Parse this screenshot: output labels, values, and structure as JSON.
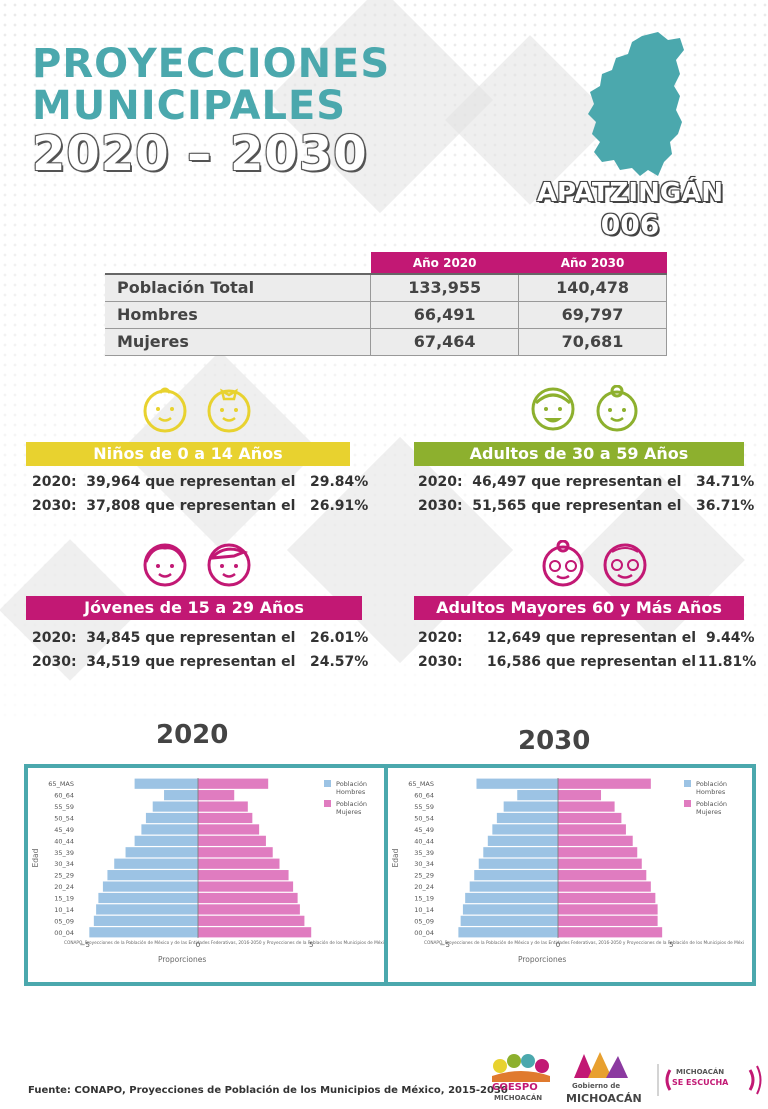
{
  "header": {
    "title_line1": "PROYECCIONES",
    "title_line2": "MUNICIPALES",
    "title_line3": "2020 – 2030",
    "municipality": "APATZINGÁN",
    "code": "006"
  },
  "population_table": {
    "col_2020": "Año 2020",
    "col_2030": "Año 2030",
    "rows": [
      {
        "label": "Población Total",
        "v2020": "133,955",
        "v2030": "140,478"
      },
      {
        "label": "Hombres",
        "v2020": "66,491",
        "v2030": "69,797"
      },
      {
        "label": "Mujeres",
        "v2020": "67,464",
        "v2030": "70,681"
      }
    ]
  },
  "groups": {
    "ninos": {
      "title": "Niños de 0 a 14 Años",
      "l2020": "2020:  39,964 que representan el",
      "p2020": "29.84%",
      "l2030": "2030:  37,808 que representan el",
      "p2030": "26.91%"
    },
    "adultos": {
      "title": "Adultos de 30 a 59 Años",
      "l2020": "2020:  46,497 que representan el",
      "p2020": "34.71%",
      "l2030": "2030:  51,565 que representan el",
      "p2030": "36.71%"
    },
    "jovenes": {
      "title": "Jóvenes de 15 a 29 Años",
      "l2020": "2020:  34,845 que representan el",
      "p2020": "26.01%",
      "l2030": "2030:  34,519 que representan el",
      "p2030": "24.57%"
    },
    "mayores": {
      "title": "Adultos Mayores  60 y Más Años",
      "l2020": "2020:     12,649 que representan el",
      "p2020": "9.44%",
      "l2030": "2030:     16,586 que representan el",
      "p2030": "11.81%"
    }
  },
  "colors": {
    "teal": "#4ba8ad",
    "magenta": "#c21874",
    "yellow": "#e8d22f",
    "green": "#8db02e",
    "hombres": "#9cc3e4",
    "mujeres": "#e07cc0"
  },
  "chart_data": [
    {
      "type": "bar",
      "orientation": "horizontal-population-pyramid",
      "title": "2020",
      "categories": [
        "00_04",
        "05_09",
        "10_14",
        "15_19",
        "20_24",
        "25_29",
        "30_34",
        "35_39",
        "40_44",
        "45_49",
        "50_54",
        "55_59",
        "60_64",
        "65_MAS"
      ],
      "series": [
        {
          "name": "Población Hombres",
          "values": [
            -4.8,
            -4.6,
            -4.5,
            -4.4,
            -4.2,
            -4.0,
            -3.7,
            -3.2,
            -2.8,
            -2.5,
            -2.3,
            -2.0,
            -1.5,
            -2.8
          ]
        },
        {
          "name": "Población Mujeres",
          "values": [
            5.0,
            4.7,
            4.5,
            4.4,
            4.2,
            4.0,
            3.6,
            3.3,
            3.0,
            2.7,
            2.4,
            2.2,
            1.6,
            3.1
          ]
        }
      ],
      "xlim": [
        -5,
        5
      ],
      "xticks": [
        "−5",
        "0",
        "5"
      ],
      "xlabel": "Proporciones",
      "ylabel": "Edad",
      "note": "CONAPO. Proyecciones de la Población de México y de las Entidades Federativas, 2016-2050 y Proyecciones de la Población de los Municipios de Méxi",
      "legend": "top-right"
    },
    {
      "type": "bar",
      "orientation": "horizontal-population-pyramid",
      "title": "2030",
      "categories": [
        "00_04",
        "05_09",
        "10_14",
        "15_19",
        "20_24",
        "25_29",
        "30_34",
        "35_39",
        "40_44",
        "45_49",
        "50_54",
        "55_59",
        "60_64",
        "65_MAS"
      ],
      "series": [
        {
          "name": "Población Hombres",
          "values": [
            -4.4,
            -4.3,
            -4.2,
            -4.1,
            -3.9,
            -3.7,
            -3.5,
            -3.3,
            -3.1,
            -2.9,
            -2.7,
            -2.4,
            -1.8,
            -3.6
          ]
        },
        {
          "name": "Población Mujeres",
          "values": [
            4.6,
            4.4,
            4.4,
            4.3,
            4.1,
            3.9,
            3.7,
            3.5,
            3.3,
            3.0,
            2.8,
            2.5,
            1.9,
            4.1
          ]
        }
      ],
      "xlim": [
        -5,
        5
      ],
      "xticks": [
        "−5",
        "0",
        "5"
      ],
      "xlabel": "Proporciones",
      "ylabel": "Edad",
      "note": "CONAPO. Proyecciones de la Población de México y de las Entidades Federativas, 2016-2050 y Proyecciones de la Población de los Municipios de Méxi",
      "legend": "top-right"
    }
  ],
  "footer": {
    "source": "Fuente: CONAPO, Proyecciones de Población de los Municipios de México, 2015-2030",
    "logo1_line1": "COESPO",
    "logo1_line2": "MICHOACÁN",
    "logo2_line1": "Gobierno de",
    "logo2_line2": "MICHOACÁN",
    "logo3_line1": "MICHOACÁN",
    "logo3_line2": "SE ESCUCHA"
  }
}
